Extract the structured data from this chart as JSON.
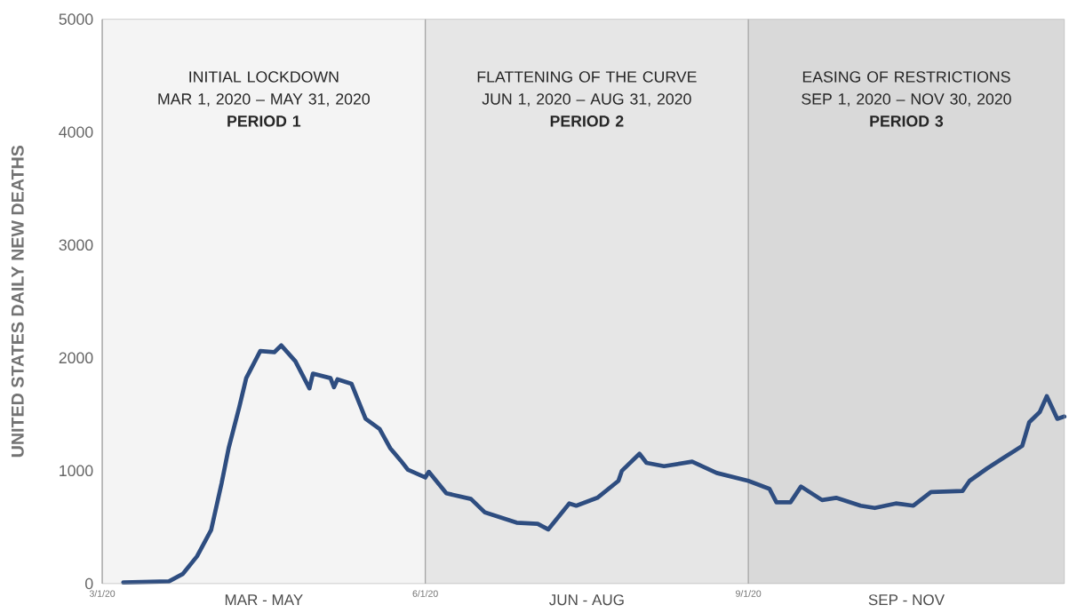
{
  "chart_data": {
    "type": "line",
    "ylabel": "UNITED STATES DAILY NEW DEATHS",
    "xlim": [
      "2020-03-01",
      "2020-11-30"
    ],
    "ylim": [
      0,
      5000
    ],
    "yticks": [
      0,
      1000,
      2000,
      3000,
      4000,
      5000
    ],
    "xticks": [
      {
        "value": "2020-03-01",
        "label": "3/1/20"
      },
      {
        "value": "2020-06-01",
        "label": "6/1/20"
      },
      {
        "value": "2020-09-01",
        "label": "9/1/20"
      }
    ],
    "x": [
      "2020-03-07",
      "2020-03-20",
      "2020-03-24",
      "2020-03-28",
      "2020-04-01",
      "2020-04-04",
      "2020-04-06",
      "2020-04-09",
      "2020-04-11",
      "2020-04-15",
      "2020-04-19",
      "2020-04-21",
      "2020-04-25",
      "2020-04-29",
      "2020-04-30",
      "2020-05-05",
      "2020-05-06",
      "2020-05-07",
      "2020-05-11",
      "2020-05-15",
      "2020-05-19",
      "2020-05-22",
      "2020-05-25",
      "2020-05-27",
      "2020-06-01",
      "2020-06-02",
      "2020-06-07",
      "2020-06-14",
      "2020-06-18",
      "2020-06-27",
      "2020-07-03",
      "2020-07-06",
      "2020-07-12",
      "2020-07-14",
      "2020-07-20",
      "2020-07-26",
      "2020-07-27",
      "2020-08-01",
      "2020-08-03",
      "2020-08-08",
      "2020-08-16",
      "2020-08-23",
      "2020-09-01",
      "2020-09-07",
      "2020-09-09",
      "2020-09-13",
      "2020-09-16",
      "2020-09-22",
      "2020-09-26",
      "2020-10-03",
      "2020-10-07",
      "2020-10-13",
      "2020-10-18",
      "2020-10-23",
      "2020-11-01",
      "2020-11-03",
      "2020-11-08",
      "2020-11-13",
      "2020-11-18",
      "2020-11-20",
      "2020-11-23",
      "2020-11-25",
      "2020-11-28",
      "2020-11-30"
    ],
    "series": [
      {
        "color": "#2e4d80",
        "values": [
          10,
          20,
          87,
          242,
          474,
          890,
          1200,
          1560,
          1820,
          2060,
          2050,
          2110,
          1970,
          1730,
          1860,
          1820,
          1740,
          1810,
          1770,
          1460,
          1370,
          1200,
          1090,
          1010,
          940,
          990,
          800,
          750,
          630,
          540,
          530,
          480,
          710,
          690,
          760,
          910,
          1000,
          1150,
          1070,
          1040,
          1080,
          980,
          910,
          840,
          720,
          720,
          860,
          740,
          760,
          690,
          670,
          710,
          690,
          810,
          820,
          910,
          1020,
          1120,
          1220,
          1430,
          1520,
          1660,
          1460,
          1480
        ]
      }
    ],
    "bands": [
      {
        "axis": "x",
        "from": "2020-03-01",
        "to": "2020-06-01",
        "color": "#f4f4f4",
        "label": "INITIAL LOCKDOWN\nMAR 1, 2020 – MAY 31, 2020\n**PERIOD 1**"
      },
      {
        "axis": "x",
        "from": "2020-06-01",
        "to": "2020-09-01",
        "color": "#e6e6e6",
        "label": "FLATTENING OF THE CURVE\nJUN 1, 2020 – AUG 31, 2020\n**PERIOD 2**"
      },
      {
        "axis": "x",
        "from": "2020-09-01",
        "to": "2020-11-30",
        "color": "#d9d9d9",
        "label": "EASING OF RESTRICTIONS\nSEP 1, 2020 – NOV 30, 2020\n**PERIOD 3**"
      }
    ],
    "annotations": [
      "MAR - MAY",
      "JUN - AUG",
      "SEP - NOV"
    ]
  }
}
